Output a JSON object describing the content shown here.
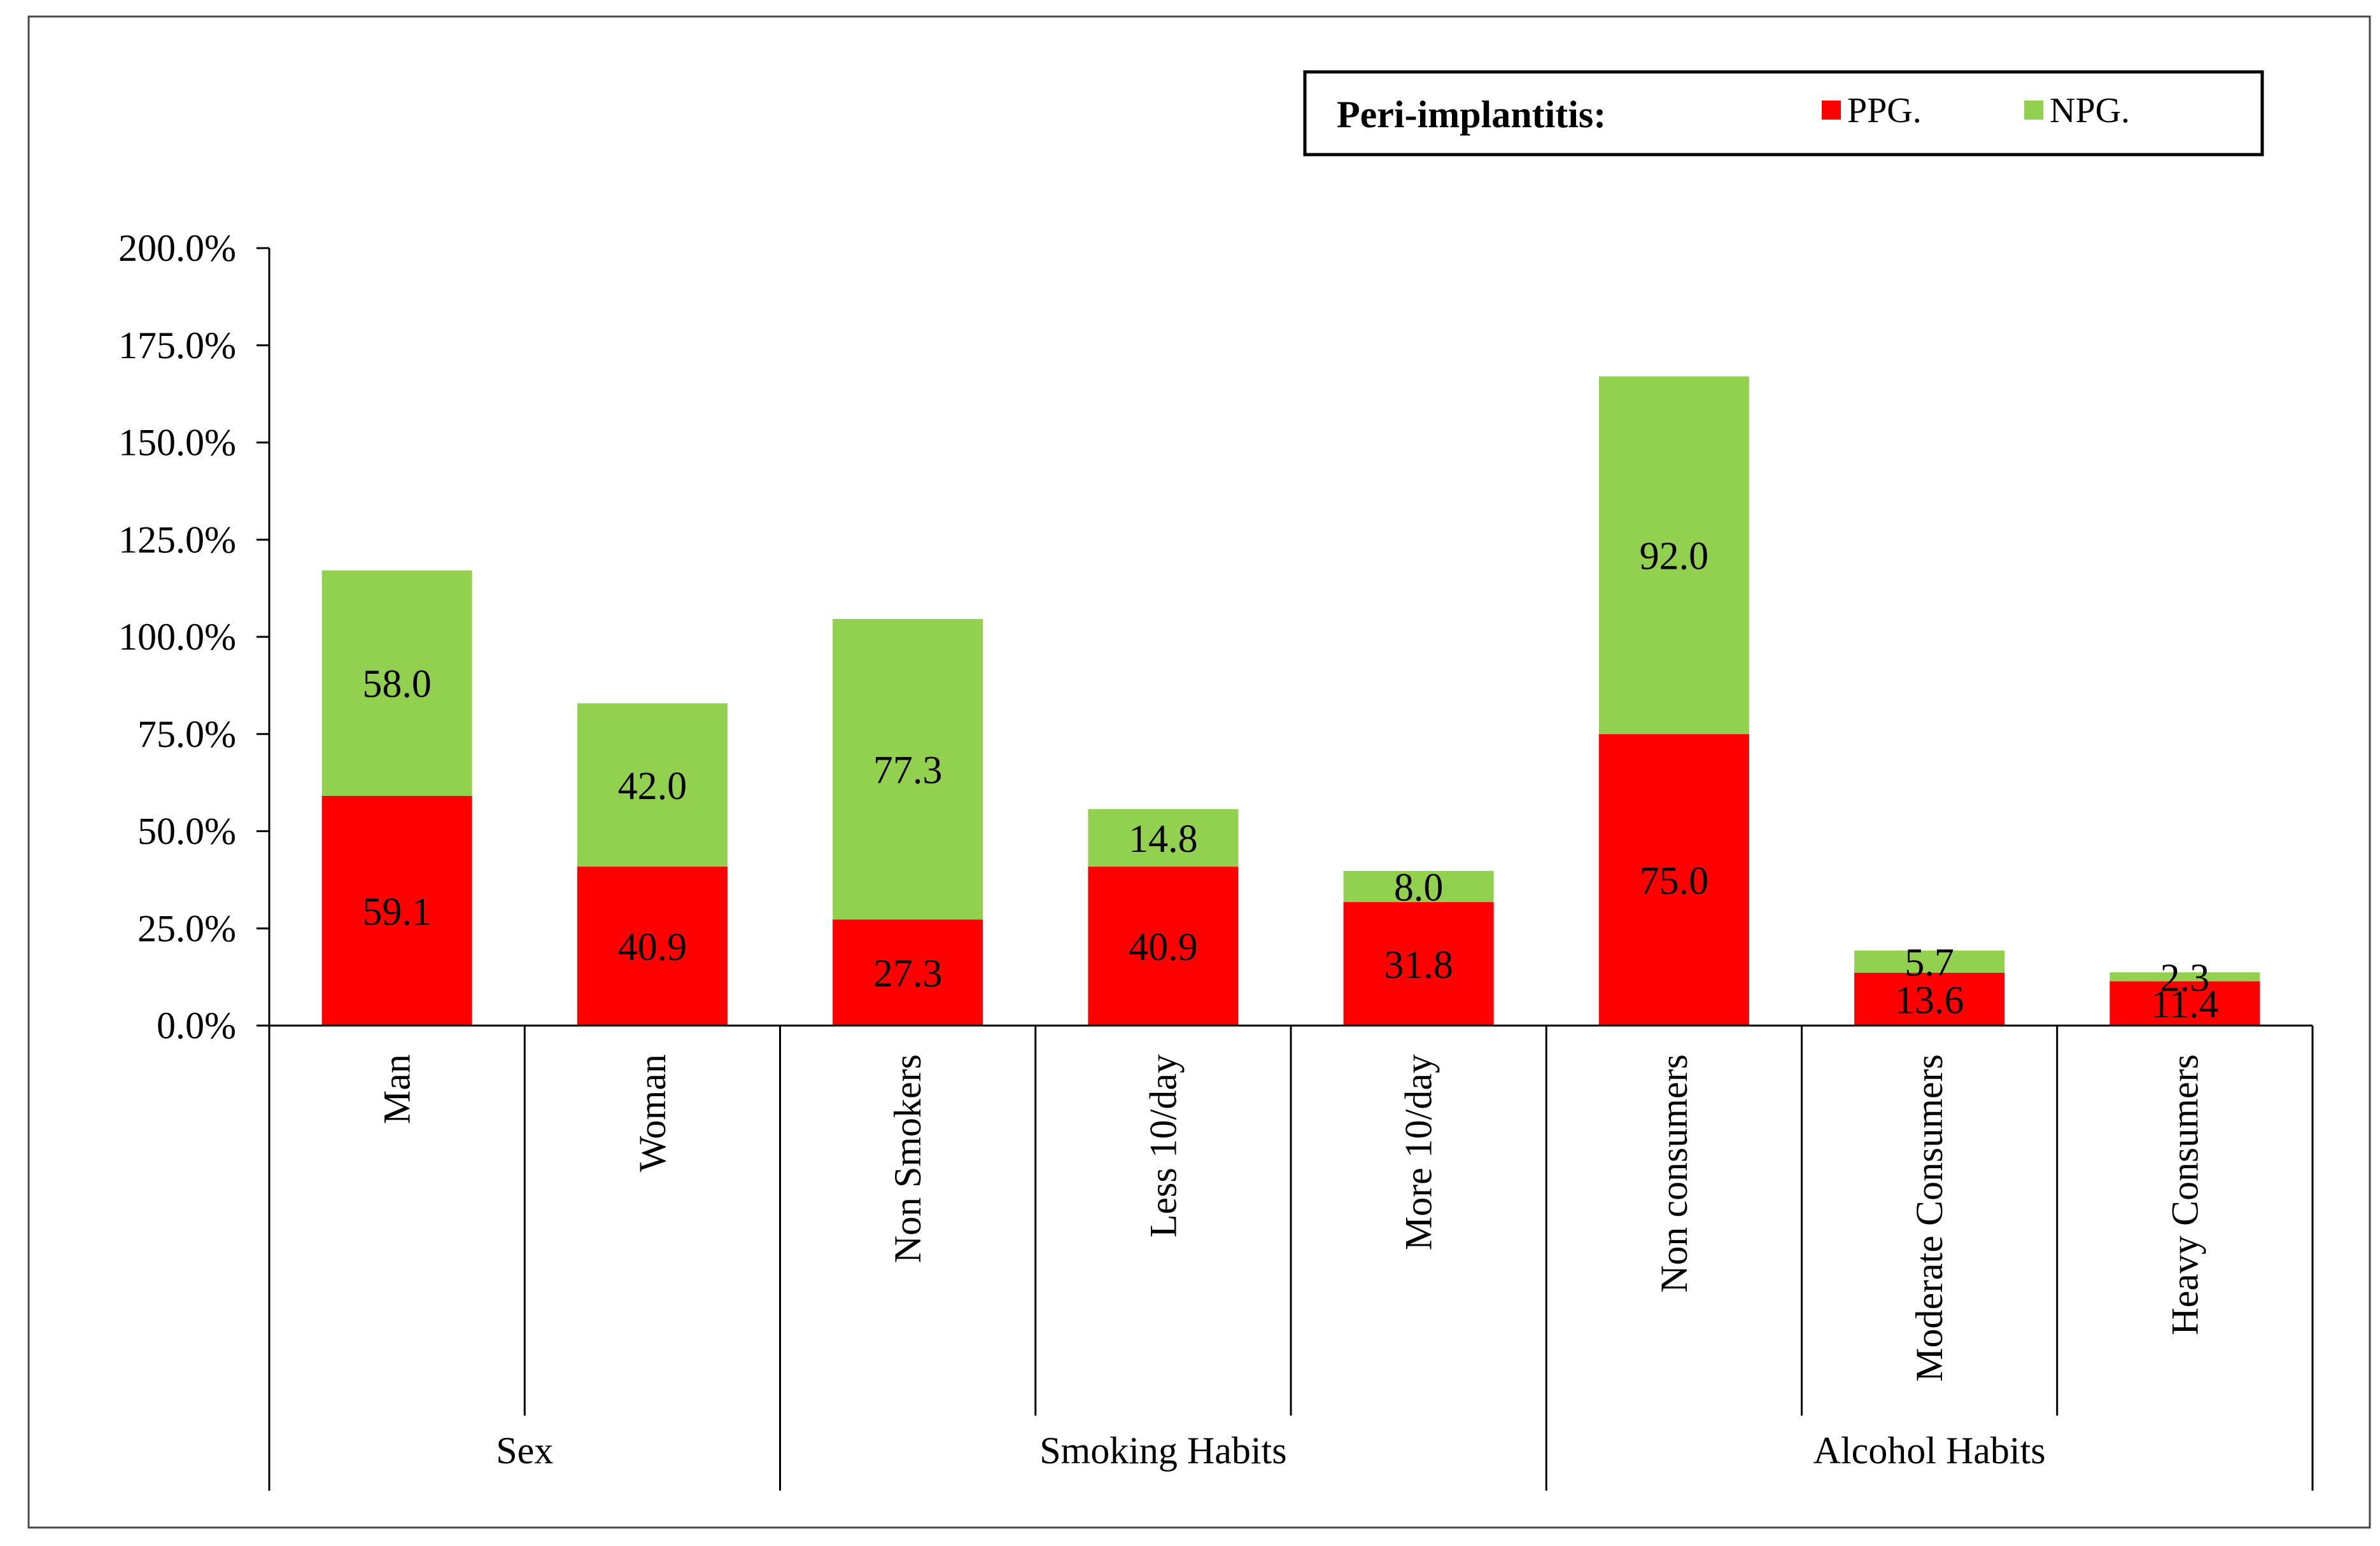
{
  "chart_data": {
    "type": "bar",
    "stacked": true,
    "legend_title": "Peri-implantitis:",
    "legend_position": "top-right",
    "categories": [
      "Man",
      "Woman",
      "Non Smokers",
      "Less 10/day",
      "More 10/day",
      "Non consumers",
      "Moderate Consumers",
      "Heavy Consumers"
    ],
    "groups": [
      {
        "label": "Sex",
        "categories": [
          "Man",
          "Woman"
        ]
      },
      {
        "label": "Smoking Habits",
        "categories": [
          "Non Smokers",
          "Less 10/day",
          "More 10/day"
        ]
      },
      {
        "label": "Alcohol Habits",
        "categories": [
          "Non consumers",
          "Moderate Consumers",
          "Heavy Consumers"
        ]
      }
    ],
    "series": [
      {
        "name": "PPG.",
        "color": "#ff0000",
        "values": [
          59.1,
          40.9,
          27.3,
          40.9,
          31.8,
          75.0,
          13.6,
          11.4
        ],
        "labels": [
          "59.1",
          "40.9",
          "27.3",
          "40.9",
          "31.8",
          "75.0",
          "13.6",
          "11.4"
        ]
      },
      {
        "name": "NPG.",
        "color": "#92d050",
        "values": [
          58.0,
          42.0,
          77.3,
          14.8,
          8.0,
          92.0,
          5.7,
          2.3
        ],
        "labels": [
          "58.0",
          "42.0",
          "77.3",
          "14.8",
          "8.0",
          "92.0",
          "5.7",
          "2.3"
        ]
      }
    ],
    "ylim": [
      0,
      200
    ],
    "yticks": [
      0,
      25,
      50,
      75,
      100,
      125,
      150,
      175,
      200
    ],
    "ytick_labels": [
      "0.0%",
      "25.0%",
      "50.0%",
      "75.0%",
      "100.0%",
      "125.0%",
      "150.0%",
      "175.0%",
      "200.0%"
    ],
    "title": "",
    "xlabel": "",
    "ylabel": "",
    "grid": false
  }
}
